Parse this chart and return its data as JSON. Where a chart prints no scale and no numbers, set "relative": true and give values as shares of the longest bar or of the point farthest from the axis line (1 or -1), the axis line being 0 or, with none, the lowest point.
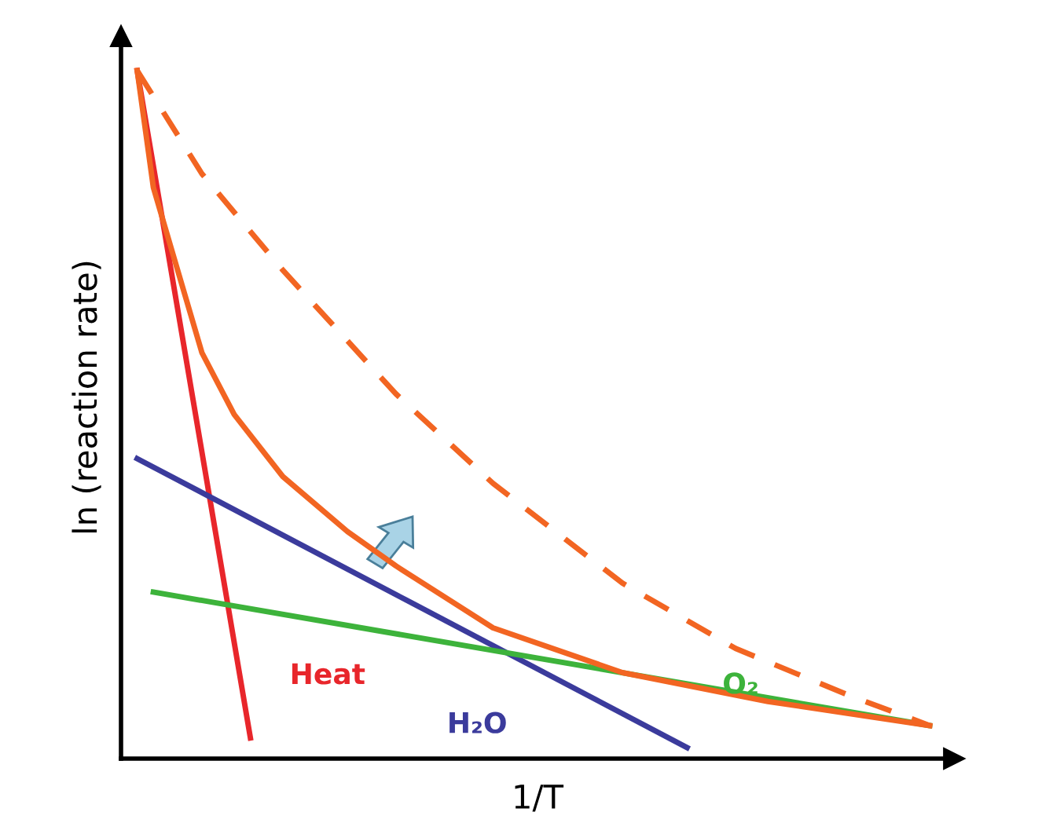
{
  "chart_data": {
    "type": "line",
    "relative": true,
    "xlabel": "1/T",
    "ylabel": "ln (reaction rate)",
    "legend": false,
    "marker": "none",
    "categories": [
      null,
      null,
      null,
      null,
      null,
      null,
      null,
      null,
      null,
      null,
      null,
      null,
      null,
      null,
      null,
      null,
      null,
      null,
      null,
      null,
      null,
      null,
      null,
      null,
      null,
      null,
      null,
      null,
      null,
      null,
      null,
      null,
      null,
      null,
      null,
      null,
      null,
      null,
      null,
      null,
      null,
      null,
      null,
      null,
      null,
      null,
      null,
      null,
      null,
      null
    ],
    "series": [
      {
        "name": "Heat",
        "color": "#e8262b",
        "values": [
          1.0,
          null,
          null,
          null,
          null,
          null,
          null,
          0.03,
          null,
          null,
          null,
          null,
          null,
          null,
          null,
          null,
          null,
          null,
          null,
          null,
          null,
          null,
          null,
          null,
          null,
          null,
          null,
          null,
          null,
          null,
          null,
          null,
          null,
          null,
          null,
          null,
          null,
          null,
          null,
          null,
          null,
          null,
          null,
          null,
          null,
          null,
          null,
          null,
          null,
          null
        ]
      },
      {
        "name": "H₂O",
        "color": "#3b3b9c",
        "values": [
          0.436,
          null,
          null,
          null,
          null,
          null,
          null,
          null,
          null,
          null,
          null,
          null,
          null,
          null,
          null,
          null,
          null,
          null,
          null,
          null,
          null,
          null,
          null,
          null,
          null,
          null,
          null,
          null,
          null,
          null,
          null,
          null,
          null,
          null,
          0.016,
          null,
          null,
          null,
          null,
          null,
          null,
          null,
          null,
          null,
          null,
          null,
          null,
          null,
          null,
          null
        ]
      },
      {
        "name": "O₂",
        "color": "#3db33b",
        "values": [
          null,
          0.242,
          null,
          null,
          null,
          null,
          null,
          null,
          null,
          null,
          null,
          null,
          null,
          null,
          null,
          null,
          null,
          null,
          null,
          null,
          null,
          null,
          null,
          null,
          null,
          null,
          null,
          null,
          null,
          null,
          null,
          null,
          null,
          null,
          null,
          null,
          null,
          null,
          null,
          null,
          null,
          null,
          null,
          null,
          null,
          null,
          null,
          null,
          null,
          0.048
        ]
      },
      {
        "color": "#f26522",
        "values": [
          1.0,
          0.83,
          null,
          0.67,
          0.59,
          null,
          0.5,
          null,
          null,
          0.41,
          null,
          null,
          null,
          0.33,
          null,
          null,
          0.28,
          null,
          null,
          null,
          null,
          null,
          0.19,
          null,
          null,
          null,
          null,
          null,
          null,
          null,
          0.125,
          null,
          null,
          null,
          null,
          null,
          null,
          null,
          null,
          0.083,
          null,
          null,
          null,
          null,
          null,
          null,
          null,
          null,
          null,
          0.048
        ]
      },
      {
        "color": "#f26522",
        "line_style": "dashed",
        "values": [
          1.0,
          null,
          null,
          null,
          0.85,
          null,
          null,
          null,
          null,
          0.71,
          null,
          null,
          null,
          null,
          null,
          null,
          0.53,
          null,
          null,
          null,
          null,
          null,
          0.4,
          null,
          null,
          null,
          null,
          null,
          null,
          null,
          0.255,
          null,
          null,
          null,
          null,
          null,
          null,
          0.16,
          null,
          null,
          null,
          null,
          null,
          null,
          0.092,
          null,
          null,
          null,
          null,
          0.048
        ]
      }
    ]
  }
}
